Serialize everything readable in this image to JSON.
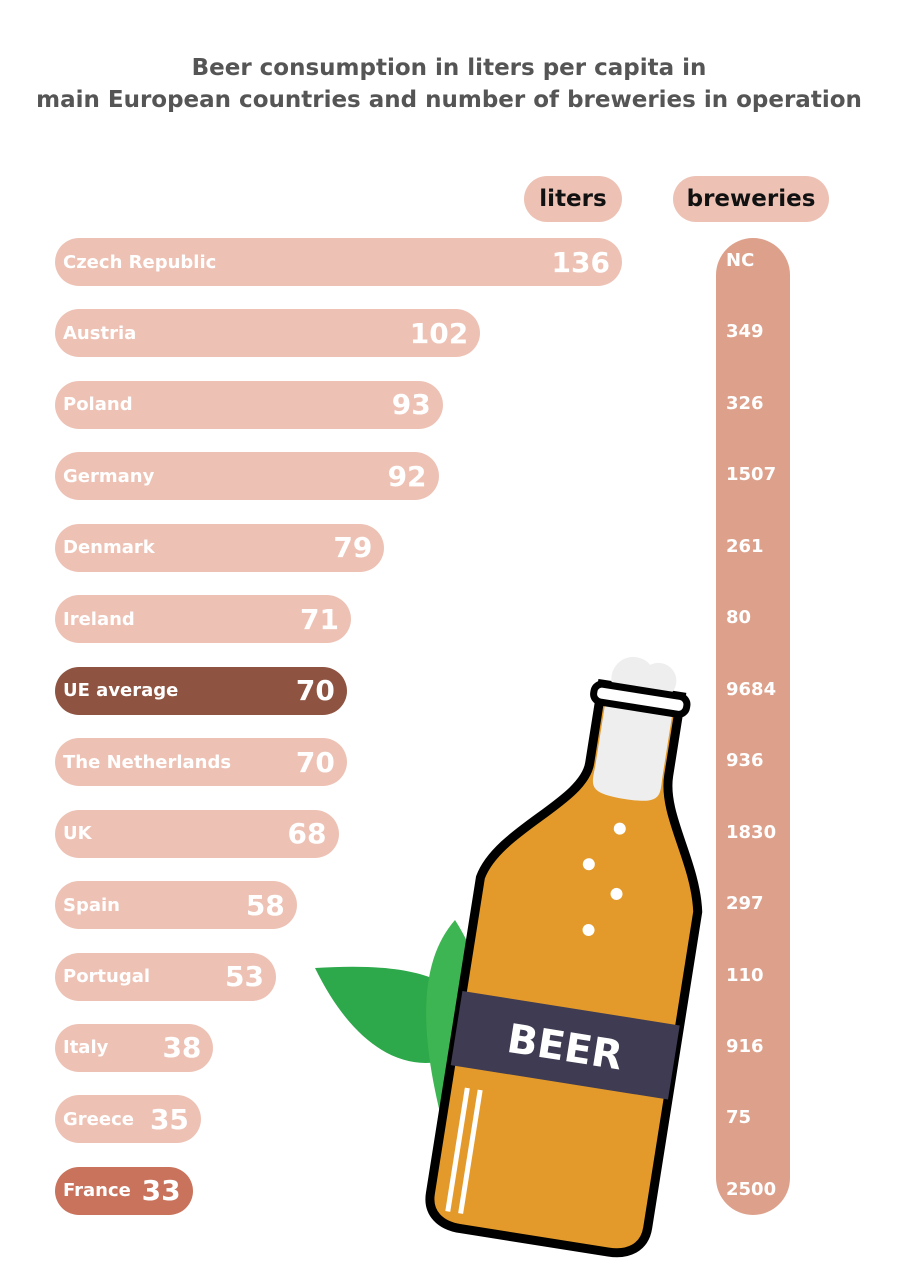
{
  "chart_data": {
    "type": "bar",
    "title": "Beer consumption in liters per capita in main European countries and number of breweries in operation",
    "title_lines": [
      "Beer consumption in liters per capita in",
      "main European countries and number of breweries in operation"
    ],
    "headers": {
      "liters": "liters",
      "breweries": "breweries"
    },
    "categories": [
      "Czech Republic",
      "Austria",
      "Poland",
      "Germany",
      "Denmark",
      "Ireland",
      "UE average",
      "The Netherlands",
      "UK",
      "Spain",
      "Portugal",
      "Italy",
      "Greece",
      "France"
    ],
    "series": [
      {
        "name": "liters",
        "values": [
          136,
          102,
          93,
          92,
          79,
          71,
          70,
          70,
          68,
          58,
          53,
          38,
          35,
          33
        ]
      },
      {
        "name": "breweries",
        "values": [
          "NC",
          "349",
          "326",
          "1507",
          "261",
          "80",
          "9684",
          "936",
          "1830",
          "297",
          "110",
          "916",
          "75",
          "2500"
        ]
      }
    ],
    "colors": {
      "default": "#EDC2B5",
      "UE average": "#8E5441",
      "France": "#C9735C",
      "breweries": "#DDA08B"
    },
    "xlim": [
      0,
      136
    ]
  },
  "illustration": {
    "label": "BEER"
  }
}
